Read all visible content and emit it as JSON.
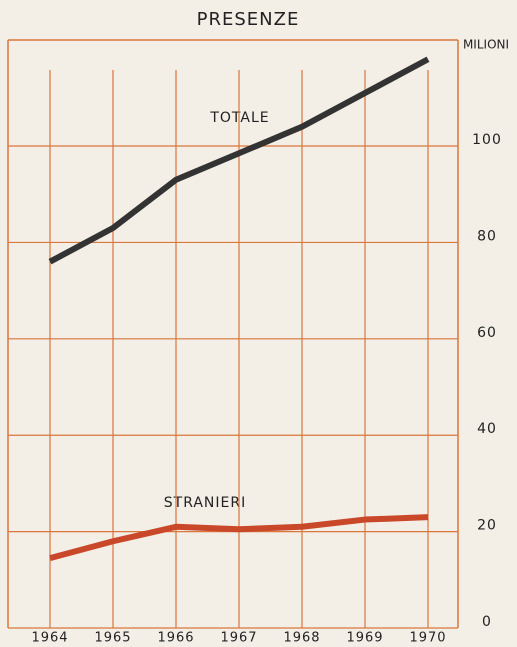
{
  "chart_data": {
    "type": "line",
    "title": "PRESENZE",
    "y_label": "MILIONI",
    "annotations": [
      "TOTALE",
      "STRANIERI"
    ],
    "categories": [
      "1964",
      "1965",
      "1966",
      "1967",
      "1968",
      "1969",
      "1970"
    ],
    "series": [
      {
        "name": "TOTALE",
        "color": "#333333",
        "values": [
          76,
          83,
          93,
          98.5,
          104,
          111,
          118
        ]
      },
      {
        "name": "STRANIERI",
        "color": "#c9482a",
        "values": [
          14.5,
          18,
          21,
          20.5,
          21,
          22.5,
          23
        ]
      }
    ],
    "ylim": [
      0,
      122
    ],
    "yticks": [
      0,
      20,
      40,
      60,
      80,
      100
    ],
    "grid": true,
    "grid_color": "#d9773c",
    "y_axis_side": "right"
  }
}
